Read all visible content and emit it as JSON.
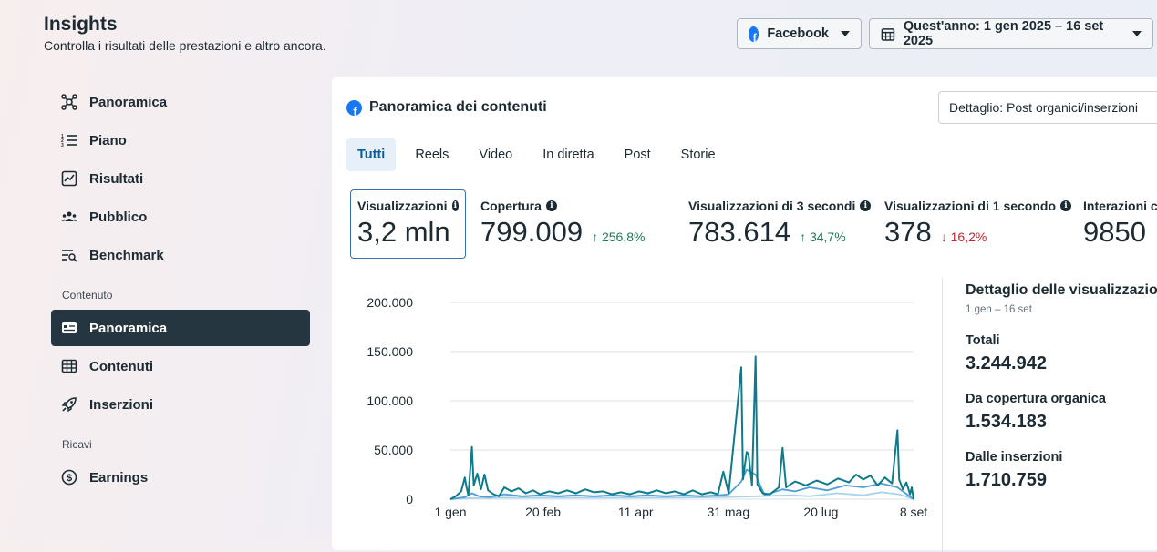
{
  "header": {
    "title": "Insights",
    "subtitle": "Controlla i risultati delle prestazioni e altro ancora."
  },
  "platform_selector": {
    "label": "Facebook"
  },
  "date_selector": {
    "label": "Quest'anno: 1 gen 2025 – 16 set 2025"
  },
  "sidebar": {
    "items": [
      {
        "label": "Panoramica",
        "icon": "network-icon"
      },
      {
        "label": "Piano",
        "icon": "list-numbered-icon"
      },
      {
        "label": "Risultati",
        "icon": "trend-chart-icon"
      },
      {
        "label": "Pubblico",
        "icon": "people-icon"
      },
      {
        "label": "Benchmark",
        "icon": "list-search-icon"
      }
    ],
    "section_content": "Contenuto",
    "content_items": [
      {
        "label": "Panoramica",
        "icon": "id-card-icon",
        "active": true
      },
      {
        "label": "Contenuti",
        "icon": "table-icon"
      },
      {
        "label": "Inserzioni",
        "icon": "rocket-icon"
      }
    ],
    "section_revenue": "Ricavi",
    "revenue_items": [
      {
        "label": "Earnings",
        "icon": "dollar-circle-icon"
      }
    ]
  },
  "card": {
    "title": "Panoramica dei contenuti",
    "detail_select": "Dettaglio: Post organici/inserzioni",
    "tabs": [
      "Tutti",
      "Reels",
      "Video",
      "In diretta",
      "Post",
      "Storie"
    ],
    "active_tab": "Tutti"
  },
  "metrics": [
    {
      "label": "Visualizzazioni",
      "value": "3,2 mln",
      "change": "",
      "selected": true
    },
    {
      "label": "Copertura",
      "value": "799.009",
      "change": "256,8%",
      "direction": "up"
    },
    {
      "label": "Visualizzazioni di 3 secondi",
      "value": "783.614",
      "change": "34,7%",
      "direction": "up"
    },
    {
      "label": "Visualizzazioni di 1 secondo",
      "value": "378",
      "change": "16,2%",
      "direction": "down"
    },
    {
      "label": "Interazioni co",
      "value": "9850",
      "change": ""
    }
  ],
  "breakdown": {
    "title": "Dettaglio delle visualizzazioni",
    "date": "1 gen – 16 set",
    "total_label": "Totali",
    "total_value": "3.244.942",
    "organic_label": "Da copertura organica",
    "organic_value": "1.534.183",
    "ads_label": "Dalle inserzioni",
    "ads_value": "1.710.759"
  },
  "colors": {
    "series_total": "#0f7b8a",
    "series_organic": "#4f9fd6",
    "series_ads": "#a7d3ec",
    "active_nav": "#263640",
    "accent": "#0a5b9c"
  },
  "chart_data": {
    "type": "line",
    "x_ticks": [
      "1 gen",
      "20 feb",
      "11 apr",
      "31 mag",
      "20 lug",
      "8 set"
    ],
    "y_ticks": [
      "200.000",
      "150.000",
      "100.000",
      "50.000",
      "0"
    ],
    "ylim": [
      0,
      200000
    ],
    "x_range_days": [
      0,
      258
    ],
    "grid": true,
    "series": [
      {
        "key": "total",
        "points": [
          [
            0,
            0
          ],
          [
            3,
            3000
          ],
          [
            6,
            8000
          ],
          [
            8,
            22000
          ],
          [
            9,
            12000
          ],
          [
            10,
            4000
          ],
          [
            12,
            53000
          ],
          [
            13,
            14000
          ],
          [
            15,
            26000
          ],
          [
            17,
            10000
          ],
          [
            19,
            25000
          ],
          [
            21,
            9000
          ],
          [
            24,
            5000
          ],
          [
            27,
            3000
          ],
          [
            30,
            12000
          ],
          [
            34,
            8000
          ],
          [
            38,
            11000
          ],
          [
            42,
            6000
          ],
          [
            46,
            9000
          ],
          [
            50,
            5000
          ],
          [
            55,
            8000
          ],
          [
            60,
            6000
          ],
          [
            65,
            9000
          ],
          [
            70,
            6000
          ],
          [
            75,
            10000
          ],
          [
            80,
            7000
          ],
          [
            85,
            8000
          ],
          [
            90,
            5000
          ],
          [
            95,
            7000
          ],
          [
            100,
            5000
          ],
          [
            105,
            8000
          ],
          [
            110,
            6000
          ],
          [
            115,
            9000
          ],
          [
            120,
            6000
          ],
          [
            125,
            8000
          ],
          [
            130,
            5000
          ],
          [
            135,
            9000
          ],
          [
            140,
            5000
          ],
          [
            145,
            7000
          ],
          [
            149,
            5000
          ],
          [
            152,
            28000
          ],
          [
            155,
            6000
          ],
          [
            162,
            134000
          ],
          [
            163,
            20000
          ],
          [
            165,
            48000
          ],
          [
            166,
            46000
          ],
          [
            168,
            14000
          ],
          [
            170,
            145000
          ],
          [
            171,
            15000
          ],
          [
            174,
            6000
          ],
          [
            178,
            5000
          ],
          [
            183,
            12000
          ],
          [
            185,
            52000
          ],
          [
            187,
            12000
          ],
          [
            192,
            18000
          ],
          [
            198,
            14000
          ],
          [
            204,
            19000
          ],
          [
            210,
            15000
          ],
          [
            216,
            21000
          ],
          [
            222,
            17000
          ],
          [
            226,
            25000
          ],
          [
            230,
            20000
          ],
          [
            234,
            24000
          ],
          [
            238,
            14000
          ],
          [
            242,
            22000
          ],
          [
            246,
            16000
          ],
          [
            249,
            70000
          ],
          [
            250,
            20000
          ],
          [
            252,
            10000
          ],
          [
            254,
            17000
          ],
          [
            256,
            5000
          ],
          [
            257,
            12000
          ],
          [
            258,
            0
          ]
        ]
      },
      {
        "key": "organic",
        "points": [
          [
            0,
            0
          ],
          [
            8,
            2000
          ],
          [
            12,
            6000
          ],
          [
            16,
            3000
          ],
          [
            22,
            2000
          ],
          [
            30,
            5000
          ],
          [
            40,
            3000
          ],
          [
            50,
            4000
          ],
          [
            60,
            3000
          ],
          [
            70,
            4000
          ],
          [
            80,
            3000
          ],
          [
            90,
            4000
          ],
          [
            100,
            3000
          ],
          [
            110,
            4000
          ],
          [
            120,
            3000
          ],
          [
            130,
            4000
          ],
          [
            140,
            3000
          ],
          [
            150,
            4000
          ],
          [
            155,
            5000
          ],
          [
            162,
            18000
          ],
          [
            165,
            30000
          ],
          [
            170,
            25000
          ],
          [
            175,
            4000
          ],
          [
            185,
            10000
          ],
          [
            192,
            8000
          ],
          [
            200,
            12000
          ],
          [
            210,
            9000
          ],
          [
            220,
            14000
          ],
          [
            230,
            12000
          ],
          [
            240,
            16000
          ],
          [
            249,
            12000
          ],
          [
            252,
            8000
          ],
          [
            258,
            0
          ]
        ]
      },
      {
        "key": "ads",
        "points": [
          [
            0,
            0
          ],
          [
            10,
            1000
          ],
          [
            30,
            1500
          ],
          [
            60,
            1500
          ],
          [
            90,
            1500
          ],
          [
            120,
            1500
          ],
          [
            150,
            2000
          ],
          [
            170,
            3000
          ],
          [
            190,
            4000
          ],
          [
            200,
            3000
          ],
          [
            215,
            6000
          ],
          [
            230,
            4000
          ],
          [
            240,
            7000
          ],
          [
            250,
            5000
          ],
          [
            258,
            0
          ]
        ]
      }
    ]
  }
}
